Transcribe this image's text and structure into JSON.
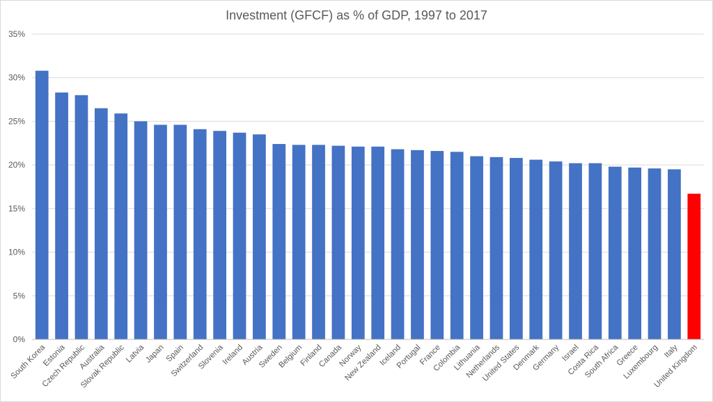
{
  "chart_data": {
    "type": "bar",
    "title": "Investment (GFCF) as % of GDP, 1997 to 2017",
    "xlabel": "",
    "ylabel": "",
    "ylim": [
      0,
      35
    ],
    "yticks": [
      0,
      5,
      10,
      15,
      20,
      25,
      30,
      35
    ],
    "ytick_labels": [
      "0%",
      "5%",
      "10%",
      "15%",
      "20%",
      "25%",
      "30%",
      "35%"
    ],
    "grid": true,
    "legend": "none",
    "categories": [
      "South Korea",
      "Estonia",
      "Czech Republic",
      "Australia",
      "Slovak Republic",
      "Latvia",
      "Japan",
      "Spain",
      "Switzerland",
      "Slovenia",
      "Ireland",
      "Austria",
      "Sweden",
      "Belgium",
      "Finland",
      "Canada",
      "Norway",
      "New Zealand",
      "Iceland",
      "Portugal",
      "France",
      "Colombia",
      "Lithuania",
      "Netherlands",
      "United States",
      "Denmark",
      "Germany",
      "Israel",
      "Costa Rica",
      "South Africa",
      "Greece",
      "Luxembourg",
      "Italy",
      "United Kingdom"
    ],
    "values": [
      30.8,
      28.3,
      28.0,
      26.5,
      25.9,
      25.0,
      24.6,
      24.6,
      24.1,
      23.9,
      23.7,
      23.5,
      22.4,
      22.3,
      22.3,
      22.2,
      22.1,
      22.1,
      21.8,
      21.7,
      21.6,
      21.5,
      21.0,
      20.9,
      20.8,
      20.6,
      20.4,
      20.2,
      20.2,
      19.8,
      19.7,
      19.6,
      19.5,
      16.7
    ],
    "colors": {
      "default": "#4472c4",
      "highlight": "#ff0000",
      "highlight_category": "United Kingdom",
      "grid": "#d9d9d9",
      "axis": "#bfbfbf",
      "text": "#595959"
    }
  }
}
